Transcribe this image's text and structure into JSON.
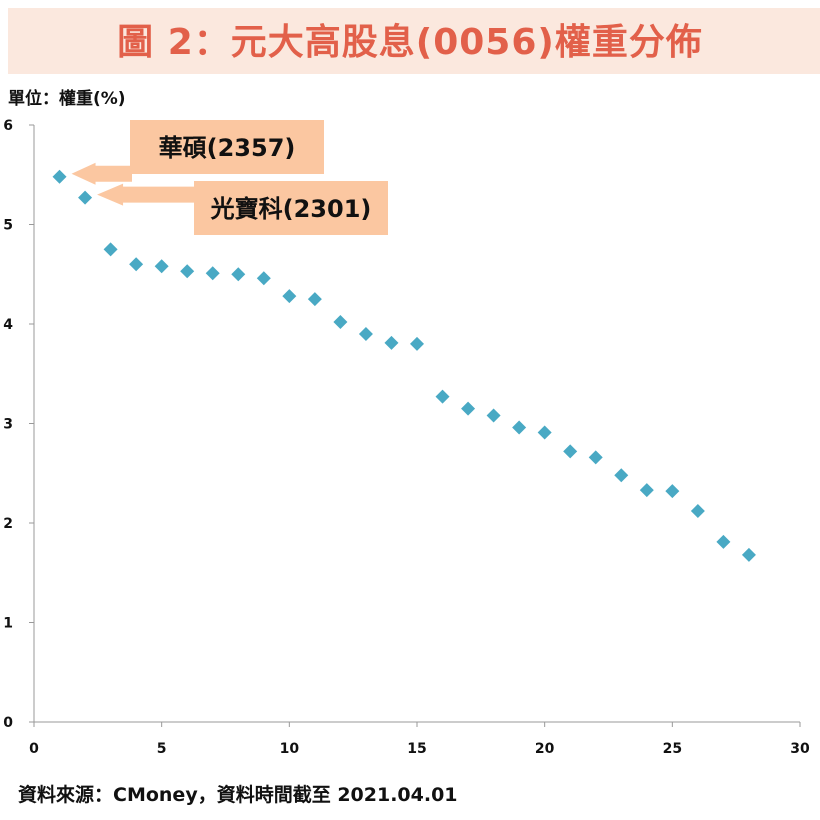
{
  "page_title": "圖 2：元大高股息(0056)權重分佈",
  "unit_label": "單位：權重(%)",
  "source_note": "資料來源：CMoney，資料時間截至 2021.04.01",
  "colors": {
    "title": "#e2604a",
    "title_band": "#fbe8de",
    "marker": "#49a9c4",
    "callout": "#fbc7a1"
  },
  "annotations": [
    {
      "text": "華碩(2357)",
      "x": 1,
      "y": 5.48
    },
    {
      "text": "光寶科(2301)",
      "x": 2,
      "y": 5.27
    }
  ],
  "chart_data": {
    "type": "scatter",
    "title": "圖 2：元大高股息(0056)權重分佈",
    "xlabel": "",
    "ylabel": "單位：權重(%)",
    "xlim": [
      0,
      30
    ],
    "ylim": [
      0,
      6
    ],
    "x_ticks": [
      0,
      5,
      10,
      15,
      20,
      25,
      30
    ],
    "y_ticks": [
      0,
      1,
      2,
      3,
      4,
      5,
      6
    ],
    "grid": false,
    "marker": "diamond",
    "x": [
      1,
      2,
      3,
      4,
      5,
      6,
      7,
      8,
      9,
      10,
      11,
      12,
      13,
      14,
      15,
      16,
      17,
      18,
      19,
      20,
      21,
      22,
      23,
      24,
      25,
      26,
      27,
      28
    ],
    "y": [
      5.48,
      5.27,
      4.75,
      4.6,
      4.58,
      4.53,
      4.51,
      4.5,
      4.46,
      4.28,
      4.25,
      4.02,
      3.9,
      3.81,
      3.8,
      3.27,
      3.15,
      3.08,
      2.96,
      2.91,
      2.72,
      2.66,
      2.48,
      2.33,
      2.32,
      2.12,
      1.81,
      1.68
    ]
  }
}
